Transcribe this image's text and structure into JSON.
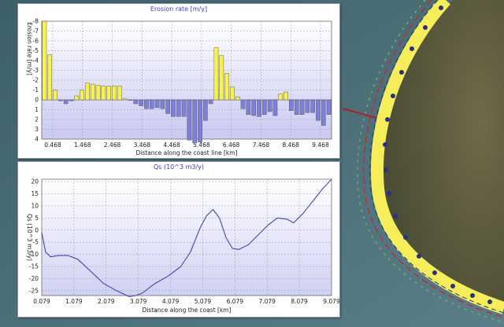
{
  "chart_data": [
    {
      "type": "bar",
      "title": "Erosion rate [m/y]",
      "xlabel": "Distance along the coast line [km]",
      "ylabel": "Erosion rate [m/y]",
      "x_tick_labels": [
        "0.468",
        "1.468",
        "2.468",
        "3.468",
        "4.468",
        "5.468",
        "6.468",
        "7.468",
        "8.468",
        "9.468"
      ],
      "y_tick_labels": [
        "-8",
        "-7",
        "-6",
        "-5",
        "-4",
        "-3",
        "-2",
        "-1",
        "0",
        "1",
        "2",
        "3",
        "4"
      ],
      "ylim": [
        -8,
        4
      ],
      "grid": true,
      "positive_color": "#f7f24e",
      "negative_color": "#7d80da",
      "values": [
        -8,
        -4.6,
        -1,
        0.1,
        0.4,
        0.1,
        -0.4,
        -1,
        -1.7,
        -1.6,
        -1.5,
        -1.4,
        -1.4,
        -1.4,
        -1.4,
        -0.1,
        0,
        0.4,
        0.6,
        0.9,
        0.9,
        0.8,
        0.9,
        1.4,
        1.7,
        1.7,
        1.7,
        4.1,
        4.4,
        4.3,
        2.1,
        0.4,
        -5.3,
        -4.5,
        -2.7,
        -1.3,
        -0.3,
        0.9,
        1.5,
        1.6,
        1.7,
        1.5,
        1.2,
        1.6,
        -0.6,
        -0.8,
        1.1,
        1.5,
        1.5,
        1.3,
        1.3,
        2.1,
        2.6,
        1.5
      ]
    },
    {
      "type": "line",
      "title": "Qs (10^3 m3/y)",
      "xlabel": "Distance along the coast [km]",
      "ylabel": "Qs (10^3 m3/y)",
      "x_tick_labels": [
        "0.079",
        "1.079",
        "2.079",
        "3.079",
        "4.079",
        "5.079",
        "6.079",
        "7.079",
        "8.079",
        "9.079"
      ],
      "y_tick_labels": [
        "20",
        "15",
        "10",
        "5",
        "0",
        "-5",
        "-10",
        "-15",
        "-20",
        "-25"
      ],
      "xlim": [
        0.079,
        9.079
      ],
      "ylim": [
        -27,
        21
      ],
      "grid": true,
      "line_color": "#4444bb",
      "x": [
        0.079,
        0.2,
        0.35,
        0.6,
        0.9,
        1.2,
        1.6,
        2.0,
        2.4,
        2.8,
        3.0,
        3.2,
        3.6,
        4.0,
        4.4,
        4.7,
        5.0,
        5.2,
        5.4,
        5.6,
        5.8,
        6.0,
        6.2,
        6.5,
        6.8,
        7.1,
        7.4,
        7.7,
        7.9,
        8.2,
        8.5,
        8.8,
        9.079
      ],
      "y": [
        -1,
        -9,
        -11,
        -10.5,
        -10.5,
        -12,
        -17,
        -22,
        -25,
        -27.5,
        -27,
        -26,
        -22,
        -19,
        -15,
        -9,
        1,
        6,
        8.5,
        5,
        -3,
        -7.5,
        -8,
        -6,
        -2,
        2,
        5,
        4.5,
        3,
        7,
        12,
        17,
        21
      ]
    }
  ],
  "colors": {
    "map_coast": "#f5ee5a",
    "transect_dot": "#2b2f86",
    "grid_line": "#9a9a9a",
    "title_color": "#3a3ad0"
  }
}
